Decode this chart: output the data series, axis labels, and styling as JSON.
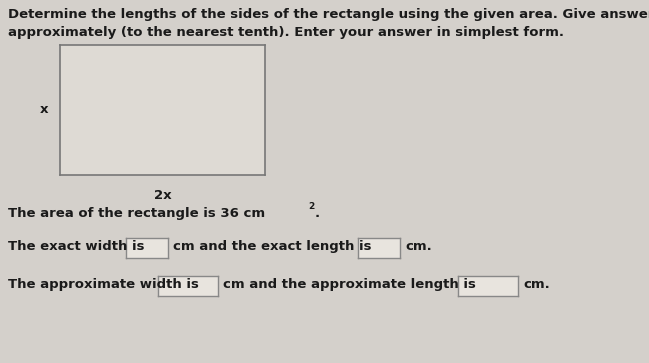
{
  "background_color": "#d4d0cb",
  "title_line1": "Determine the lengths of the sides of the rectangle using the given area. Give answers both exactly and",
  "title_line2": "approximately (to the nearest tenth). Enter your answer in simplest form.",
  "title_fontsize": 9.5,
  "rect_label_x": "x",
  "rect_label_2x": "2x",
  "area_text": "The area of the rectangle is 36 cm",
  "area_superscript": "2",
  "area_period": ".",
  "exact_row": "The exact width is",
  "exact_mid": "cm and the exact length is",
  "exact_end": "cm.",
  "approx_row": "The approximate width is",
  "approx_mid": "cm and the approximate length is",
  "approx_end": "cm.",
  "text_fontsize": 9.5,
  "text_color": "#1a1a1a",
  "rect_facecolor": "#dedad4",
  "rect_edgecolor": "#777777",
  "box_facecolor": "#e8e4de",
  "box_edgecolor": "#888888"
}
